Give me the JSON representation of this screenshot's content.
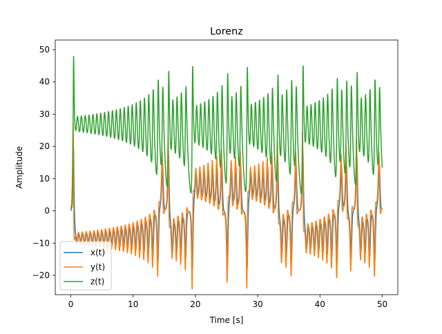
{
  "chart_data": {
    "type": "line",
    "title": "Lorenz",
    "xlabel": "Time [s]",
    "ylabel": "Amplitude",
    "xlim": [
      -2.5,
      52.5
    ],
    "ylim": [
      -26,
      53
    ],
    "xticks": [
      0,
      10,
      20,
      30,
      40,
      50
    ],
    "yticks": [
      -20,
      -10,
      0,
      10,
      20,
      30,
      40,
      50
    ],
    "grid": false,
    "legend": "lower-left",
    "t_range": [
      0,
      50
    ],
    "series": [
      {
        "name": "x(t)",
        "color": "#1f77b4"
      },
      {
        "name": "y(t)",
        "color": "#ff7f0e"
      },
      {
        "name": "z(t)",
        "color": "#2ca02c"
      }
    ]
  }
}
